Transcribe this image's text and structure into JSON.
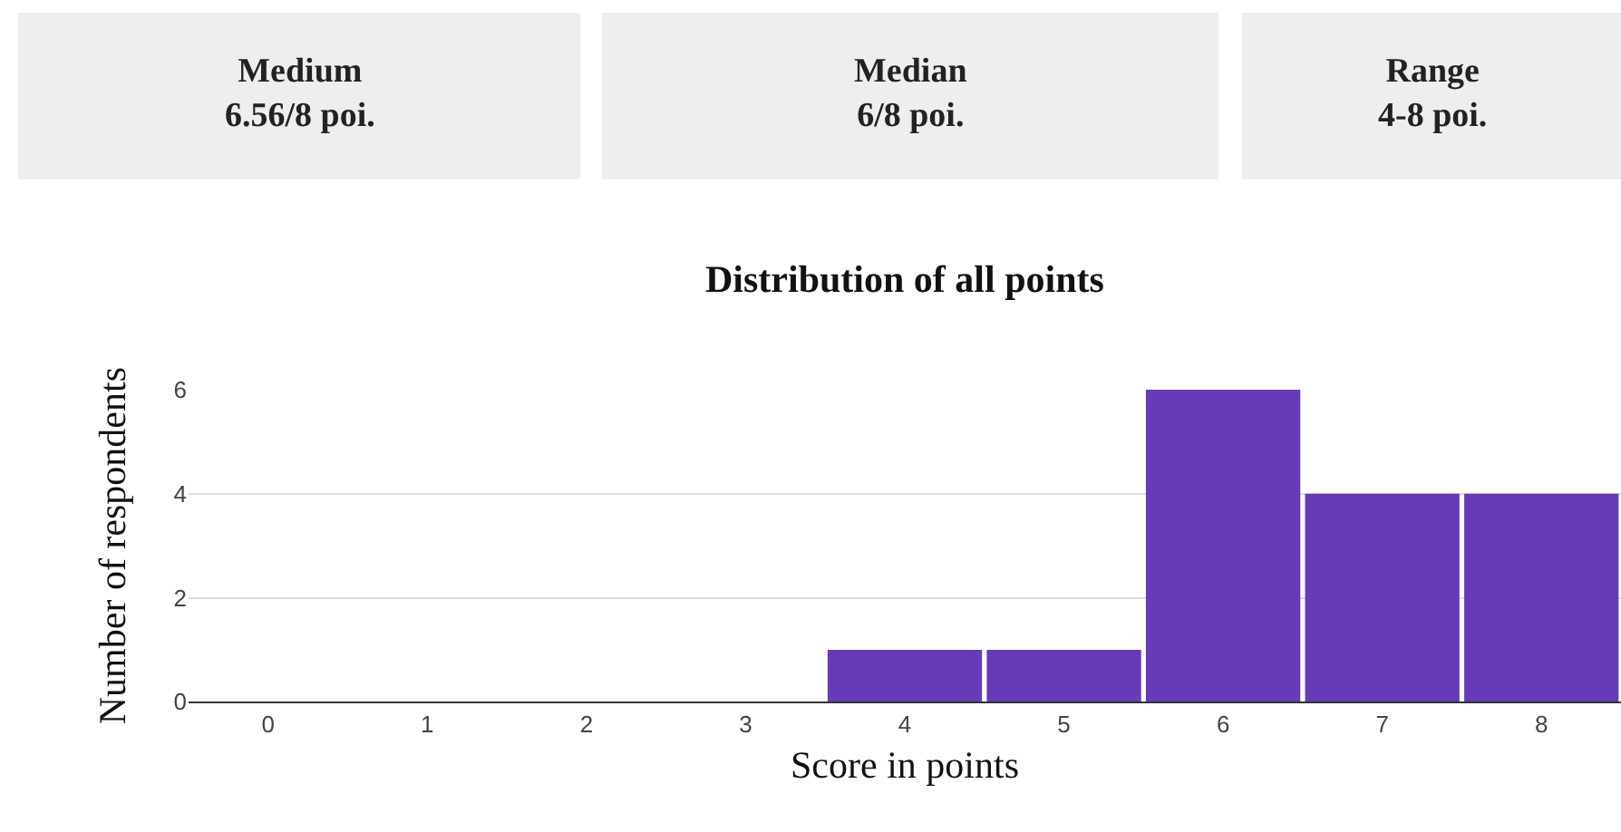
{
  "chart_data": [
    {
      "type": "other",
      "title": "Medium",
      "annotations": [
        "6.56/8 poi."
      ]
    },
    {
      "type": "other",
      "title": "Median",
      "annotations": [
        "6/8 poi."
      ]
    },
    {
      "type": "other",
      "title": "Range",
      "annotations": [
        "4-8 poi."
      ]
    },
    {
      "type": "bar",
      "title": "Distribution of all points",
      "xlabel": "Score in points",
      "ylabel": "Number of respondents",
      "categories": [
        "0",
        "1",
        "2",
        "3",
        "4",
        "5",
        "6",
        "7",
        "8"
      ],
      "values": [
        0,
        0,
        0,
        0,
        1,
        1,
        6,
        4,
        4
      ],
      "color": "#673ab7",
      "ylim": [
        0,
        6
      ],
      "yticks": [
        0,
        2,
        4,
        6
      ],
      "grid": "y"
    }
  ]
}
